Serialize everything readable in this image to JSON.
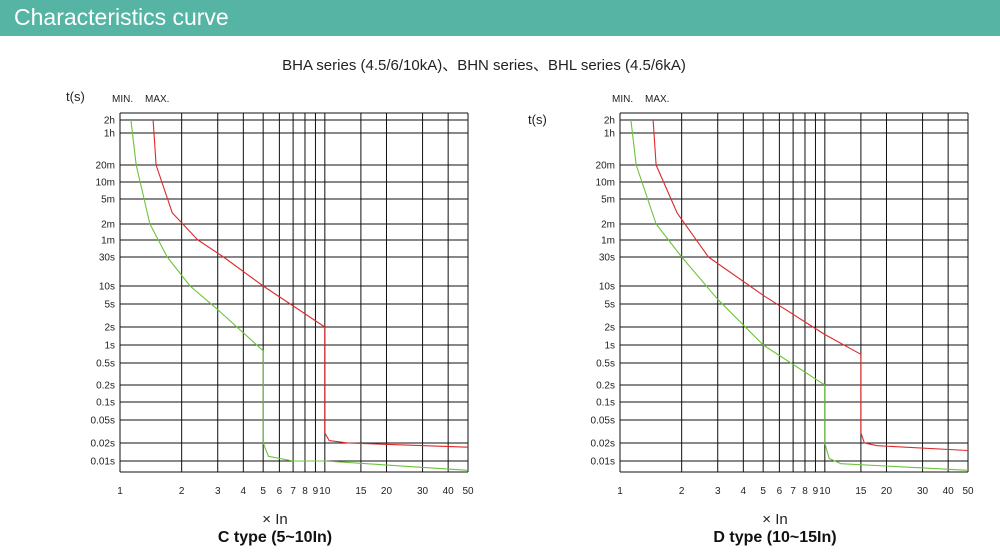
{
  "header": {
    "title": "Characteristics curve"
  },
  "subtitle": "BHA series (4.5/6/10kA)、BHN series、BHL series (4.5/6kA)",
  "colors": {
    "banner": "#55b4a4",
    "max_curve": "#e0282a",
    "min_curve": "#6cc43c",
    "grid": "#111111"
  },
  "chart_data": [
    {
      "type": "line",
      "title": "C type (5~10In)",
      "xlabel": "× In",
      "ylabel": "t(s)",
      "x_scale": "log",
      "xlim": [
        1,
        50
      ],
      "x_ticks": [
        1,
        2,
        3,
        4,
        5,
        6,
        7,
        8,
        9,
        10,
        15,
        20,
        30,
        40,
        50
      ],
      "x_tick_labels": [
        "1",
        "2",
        "3",
        "4",
        "5",
        "6",
        "7",
        "8",
        "9",
        "10",
        "15",
        "20",
        "30",
        "40",
        "50"
      ],
      "y_ticks": [
        "2h",
        "1h",
        "20m",
        "10m",
        "5m",
        "2m",
        "1m",
        "30s",
        "10s",
        "5s",
        "2s",
        "1s",
        "0.5s",
        "0.2s",
        "0.1s",
        "0.05s",
        "0.02s",
        "0.01s"
      ],
      "legend": [
        "MIN.",
        "MAX."
      ],
      "grid": true,
      "series": [
        {
          "name": "MIN.",
          "color": "#6cc43c",
          "points": [
            [
              1.13,
              "2h"
            ],
            [
              1.2,
              "20m"
            ],
            [
              1.4,
              "2m"
            ],
            [
              1.7,
              "30s"
            ],
            [
              2.2,
              "10s"
            ],
            [
              3,
              "4s"
            ],
            [
              5,
              "0.8s"
            ],
            [
              5,
              "0.02s"
            ],
            [
              5.3,
              "0.012s"
            ],
            [
              7,
              "0.01s"
            ],
            [
              10,
              "0.01s"
            ],
            [
              50,
              "0.007s"
            ]
          ]
        },
        {
          "name": "MAX.",
          "color": "#e0282a",
          "points": [
            [
              1.45,
              "2h"
            ],
            [
              1.5,
              "20m"
            ],
            [
              1.8,
              "3m"
            ],
            [
              2.4,
              "1m"
            ],
            [
              3.2,
              "30s"
            ],
            [
              5,
              "10s"
            ],
            [
              10,
              "2s"
            ],
            [
              10,
              "0.03s"
            ],
            [
              10.5,
              "0.022s"
            ],
            [
              13,
              "0.02s"
            ],
            [
              50,
              "0.017s"
            ]
          ]
        }
      ]
    },
    {
      "type": "line",
      "title": "D type (10~15In)",
      "xlabel": "× In",
      "ylabel": "t(s)",
      "x_scale": "log",
      "xlim": [
        1,
        50
      ],
      "x_ticks": [
        1,
        2,
        3,
        4,
        5,
        6,
        7,
        8,
        9,
        10,
        15,
        20,
        30,
        40,
        50
      ],
      "x_tick_labels": [
        "1",
        "2",
        "3",
        "4",
        "5",
        "6",
        "7",
        "8",
        "9",
        "10",
        "15",
        "20",
        "30",
        "40",
        "50"
      ],
      "y_ticks": [
        "2h",
        "1h",
        "20m",
        "10m",
        "5m",
        "2m",
        "1m",
        "30s",
        "10s",
        "5s",
        "2s",
        "1s",
        "0.5s",
        "0.2s",
        "0.1s",
        "0.05s",
        "0.02s",
        "0.01s"
      ],
      "legend": [
        "MIN.",
        "MAX."
      ],
      "grid": true,
      "series": [
        {
          "name": "MIN.",
          "color": "#6cc43c",
          "points": [
            [
              1.13,
              "2h"
            ],
            [
              1.2,
              "20m"
            ],
            [
              1.5,
              "2m"
            ],
            [
              2,
              "30s"
            ],
            [
              3,
              "6s"
            ],
            [
              5,
              "1s"
            ],
            [
              10,
              "0.2s"
            ],
            [
              10,
              "0.02s"
            ],
            [
              10.5,
              "0.011s"
            ],
            [
              12,
              "0.009s"
            ],
            [
              50,
              "0.007s"
            ]
          ]
        },
        {
          "name": "MAX.",
          "color": "#e0282a",
          "points": [
            [
              1.45,
              "2h"
            ],
            [
              1.5,
              "20m"
            ],
            [
              1.9,
              "3m"
            ],
            [
              2.7,
              "30s"
            ],
            [
              5,
              "7s"
            ],
            [
              10,
              "1.5s"
            ],
            [
              15,
              "0.7s"
            ],
            [
              15,
              "0.03s"
            ],
            [
              15.6,
              "0.02s"
            ],
            [
              18,
              "0.018s"
            ],
            [
              50,
              "0.015s"
            ]
          ]
        }
      ]
    }
  ]
}
